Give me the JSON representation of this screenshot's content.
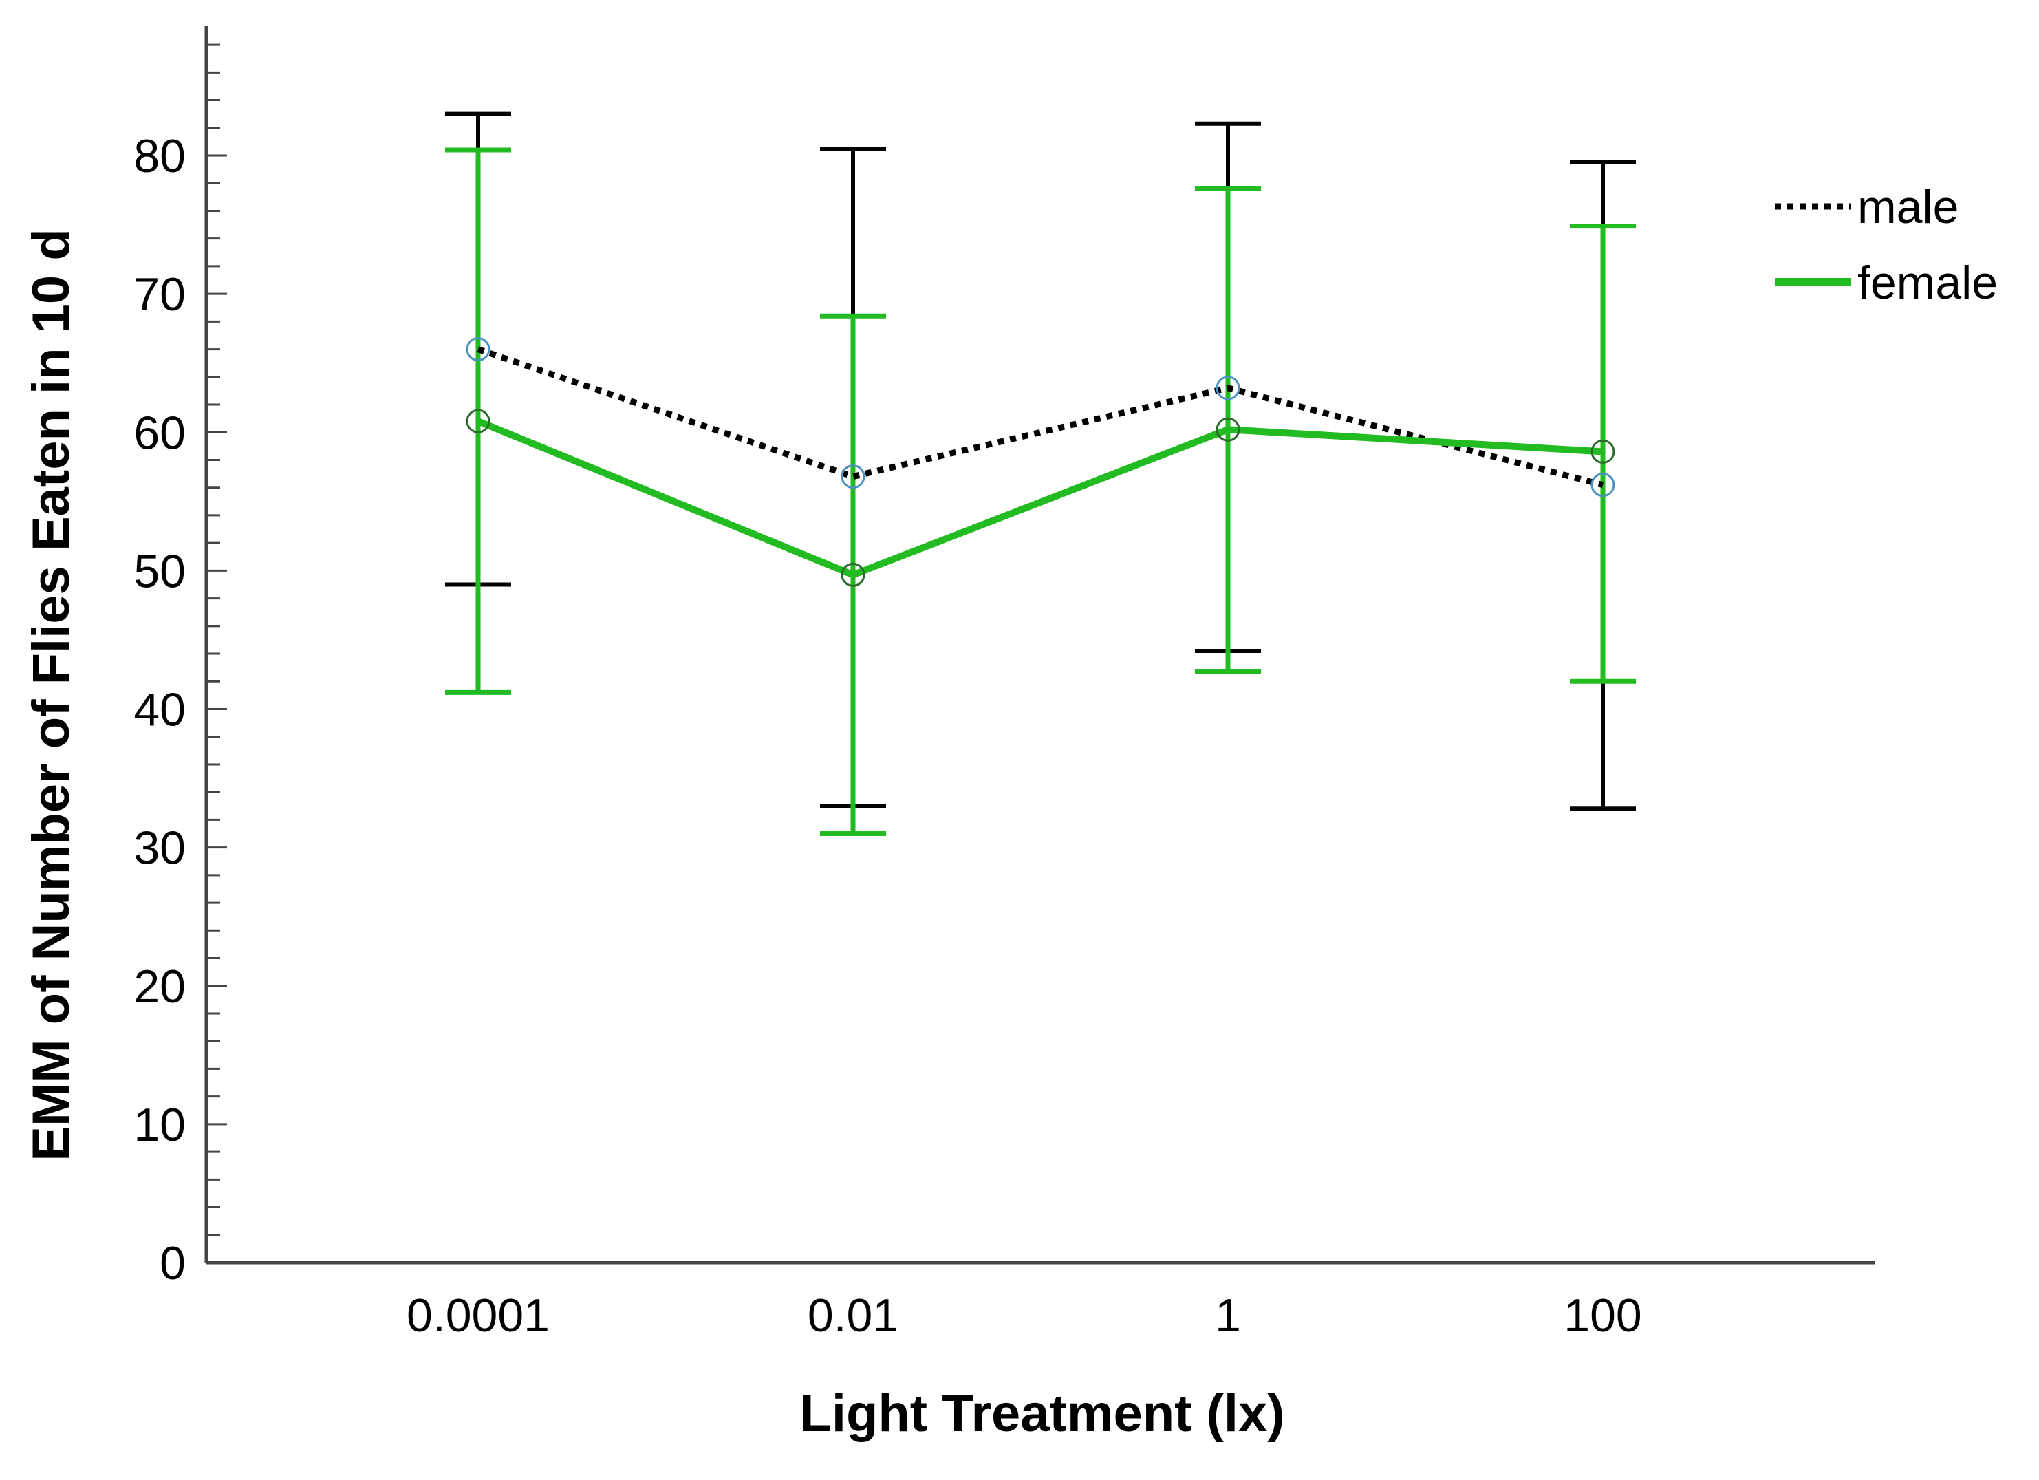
{
  "chart_data": {
    "type": "line",
    "title": "",
    "xlabel": "Light Treatment (lx)",
    "ylabel": "EMM of Number of Flies Eaten in 10 d",
    "categories": [
      "0.0001",
      "0.01",
      "1",
      "100"
    ],
    "ylim": [
      0,
      90
    ],
    "yticks": [
      0,
      10,
      20,
      30,
      40,
      50,
      60,
      70,
      80
    ],
    "grid": false,
    "legend_position": "top-right",
    "series": [
      {
        "name": "male",
        "color": "#000000",
        "dash": "dotted",
        "values": [
          66.0,
          56.8,
          63.2,
          56.2
        ],
        "ci_lower": [
          49.0,
          33.0,
          44.2,
          32.8
        ],
        "ci_upper": [
          83.0,
          80.5,
          82.3,
          79.5
        ]
      },
      {
        "name": "female",
        "color": "#22bb22",
        "dash": "solid",
        "values": [
          60.8,
          49.7,
          60.2,
          58.6
        ],
        "ci_lower": [
          41.2,
          31.0,
          42.7,
          42.0
        ],
        "ci_upper": [
          80.4,
          68.4,
          77.6,
          74.9
        ]
      }
    ]
  }
}
